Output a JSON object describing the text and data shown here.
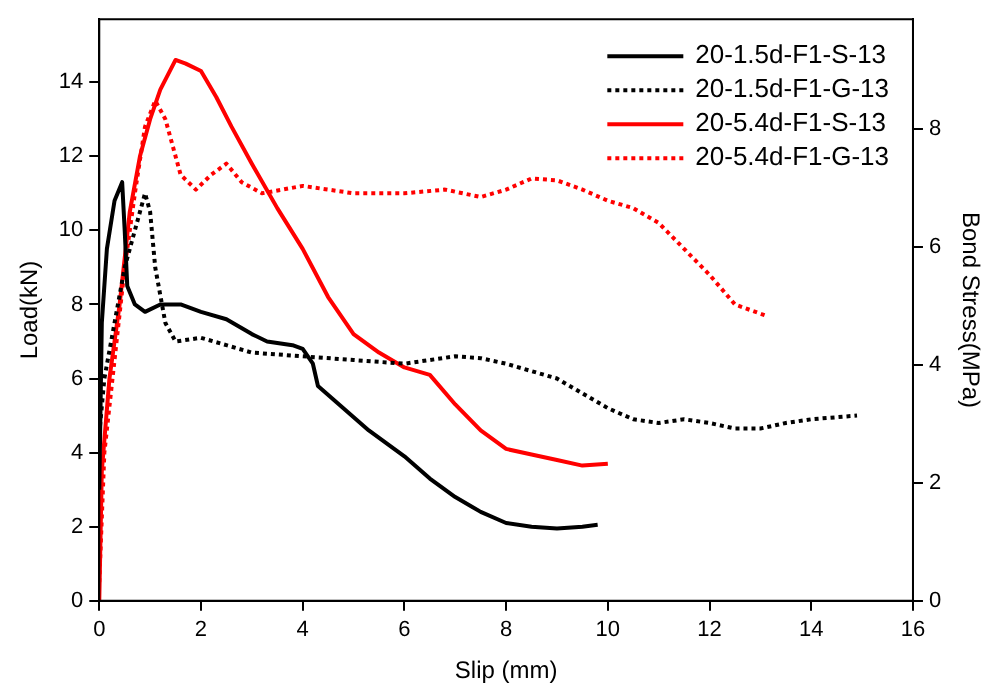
{
  "chart_data": {
    "type": "line",
    "xlabel": "Slip (mm)",
    "ylabel": "Load(kN)",
    "y2label": "Bond Stress(MPa)",
    "xlim": [
      0,
      16
    ],
    "xticks": [
      0,
      2,
      4,
      6,
      8,
      10,
      12,
      14,
      16
    ],
    "ylim": [
      0,
      15.7
    ],
    "yticks": [
      0,
      2,
      4,
      6,
      8,
      10,
      12,
      14
    ],
    "y2lim": [
      0,
      9.87
    ],
    "y2ticks": [
      0,
      2,
      4,
      6,
      8
    ],
    "grid": false,
    "legend": "top right",
    "marker": "none",
    "series": [
      {
        "name": "20-1.5d-F1-S-13",
        "color": "#000000",
        "line_style": "solid",
        "x": [
          0,
          0.05,
          0.15,
          0.3,
          0.45,
          0.5,
          0.55,
          0.7,
          0.9,
          1.2,
          1.6,
          2,
          2.5,
          3,
          3.3,
          3.8,
          4,
          4.2,
          4.3,
          4.8,
          5.3,
          6,
          6.5,
          7,
          7.5,
          8,
          8.5,
          9,
          9.5,
          9.8
        ],
        "values": [
          3,
          7.5,
          9.5,
          10.8,
          11.3,
          10,
          8.5,
          8,
          7.8,
          8,
          8,
          7.8,
          7.6,
          7.2,
          7,
          6.9,
          6.8,
          6.4,
          5.8,
          5.2,
          4.6,
          3.9,
          3.3,
          2.8,
          2.4,
          2.1,
          2,
          1.95,
          2,
          2.05
        ]
      },
      {
        "name": "20-1.5d-F1-G-13",
        "color": "#000000",
        "line_style": "dotted",
        "x": [
          0,
          0.1,
          0.3,
          0.5,
          0.7,
          0.9,
          1,
          1.1,
          1.3,
          1.5,
          2,
          2.5,
          3,
          4,
          5,
          6,
          6.5,
          7,
          7.5,
          8,
          9,
          9.5,
          10,
          10.5,
          11,
          11.5,
          12,
          12.5,
          13,
          13.5,
          14,
          14.9
        ],
        "values": [
          4.5,
          6,
          7.5,
          9,
          10,
          11,
          10.5,
          9,
          7.5,
          7,
          7.1,
          6.9,
          6.7,
          6.6,
          6.5,
          6.4,
          6.5,
          6.6,
          6.55,
          6.4,
          6,
          5.6,
          5.2,
          4.9,
          4.8,
          4.9,
          4.8,
          4.65,
          4.65,
          4.8,
          4.9,
          5
        ]
      },
      {
        "name": "20-5.4d-F1-S-13",
        "color": "#ff0000",
        "line_style": "solid",
        "x": [
          0,
          0.05,
          0.2,
          0.4,
          0.6,
          0.8,
          1,
          1.2,
          1.5,
          1.7,
          2,
          2.3,
          2.6,
          3,
          3.5,
          4,
          4.5,
          5,
          5.5,
          6,
          6.5,
          7,
          7.5,
          8,
          8.5,
          9,
          9.5,
          10
        ],
        "values": [
          0,
          3.5,
          6,
          8,
          10.5,
          12,
          13,
          13.8,
          14.6,
          14.5,
          14.3,
          13.6,
          12.8,
          11.8,
          10.6,
          9.5,
          8.2,
          7.2,
          6.7,
          6.3,
          6.1,
          5.3,
          4.6,
          4.1,
          3.95,
          3.8,
          3.65,
          3.7
        ]
      },
      {
        "name": "20-5.4d-F1-G-13",
        "color": "#ff0000",
        "line_style": "dotted",
        "x": [
          0,
          0.1,
          0.3,
          0.5,
          0.7,
          0.9,
          1.1,
          1.3,
          1.6,
          1.9,
          2.2,
          2.5,
          2.8,
          3.2,
          4,
          5,
          6,
          6.8,
          7.5,
          8,
          8.5,
          9,
          9.5,
          10,
          10.5,
          11,
          11.5,
          12,
          12.5,
          13.1
        ],
        "values": [
          0.5,
          4,
          6.5,
          9,
          11,
          12.8,
          13.5,
          13,
          11.5,
          11.1,
          11.5,
          11.8,
          11.3,
          11,
          11.2,
          11,
          11,
          11.1,
          10.9,
          11.1,
          11.4,
          11.35,
          11.1,
          10.8,
          10.6,
          10.2,
          9.5,
          8.8,
          8,
          7.7
        ]
      }
    ]
  }
}
